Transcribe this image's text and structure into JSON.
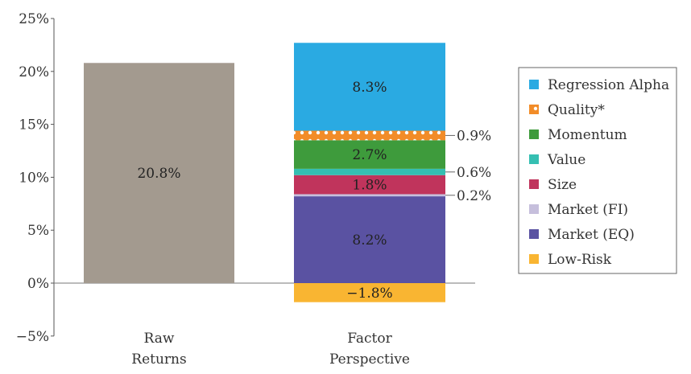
{
  "chart_data": {
    "type": "bar",
    "stacked": true,
    "title": "",
    "xlabel": "",
    "ylabel": "",
    "ylim": [
      -5,
      25
    ],
    "yticks": [
      "25%",
      "20%",
      "15%",
      "10%",
      "5%",
      "0%",
      "−5%"
    ],
    "ytick_values": [
      25,
      20,
      15,
      10,
      5,
      0,
      -5
    ],
    "grid": false,
    "legend_position": "right",
    "categories": [
      {
        "line1": "Raw",
        "line2": "Returns"
      },
      {
        "line1": "Factor",
        "line2": "Perspective"
      }
    ],
    "raw_bar": {
      "value": 20.8,
      "label": "20.8%",
      "color": "#a39a8f"
    },
    "series": [
      {
        "name": "Regression Alpha",
        "value": 8.3,
        "label": "8.3%",
        "color": "#2aaae2",
        "pattern": false
      },
      {
        "name": "Quality*",
        "value": 0.9,
        "label": "0.9%",
        "color": "#f28c28",
        "pattern": true
      },
      {
        "name": "Momentum",
        "value": 2.7,
        "label": "2.7%",
        "color": "#3e9b3c",
        "pattern": false
      },
      {
        "name": "Value",
        "value": 0.6,
        "label": "0.6%",
        "color": "#35bfb2",
        "pattern": false
      },
      {
        "name": "Size",
        "value": 1.8,
        "label": "1.8%",
        "color": "#c0345c",
        "pattern": false
      },
      {
        "name": "Market (FI)",
        "value": 0.2,
        "label": "0.2%",
        "color": "#c6bfdc",
        "pattern": false
      },
      {
        "name": "Market (EQ)",
        "value": 8.2,
        "label": "8.2%",
        "color": "#5a52a2",
        "pattern": false
      },
      {
        "name": "Low-Risk",
        "value": -1.8,
        "label": "−1.8%",
        "color": "#f9b532",
        "pattern": false
      }
    ]
  }
}
